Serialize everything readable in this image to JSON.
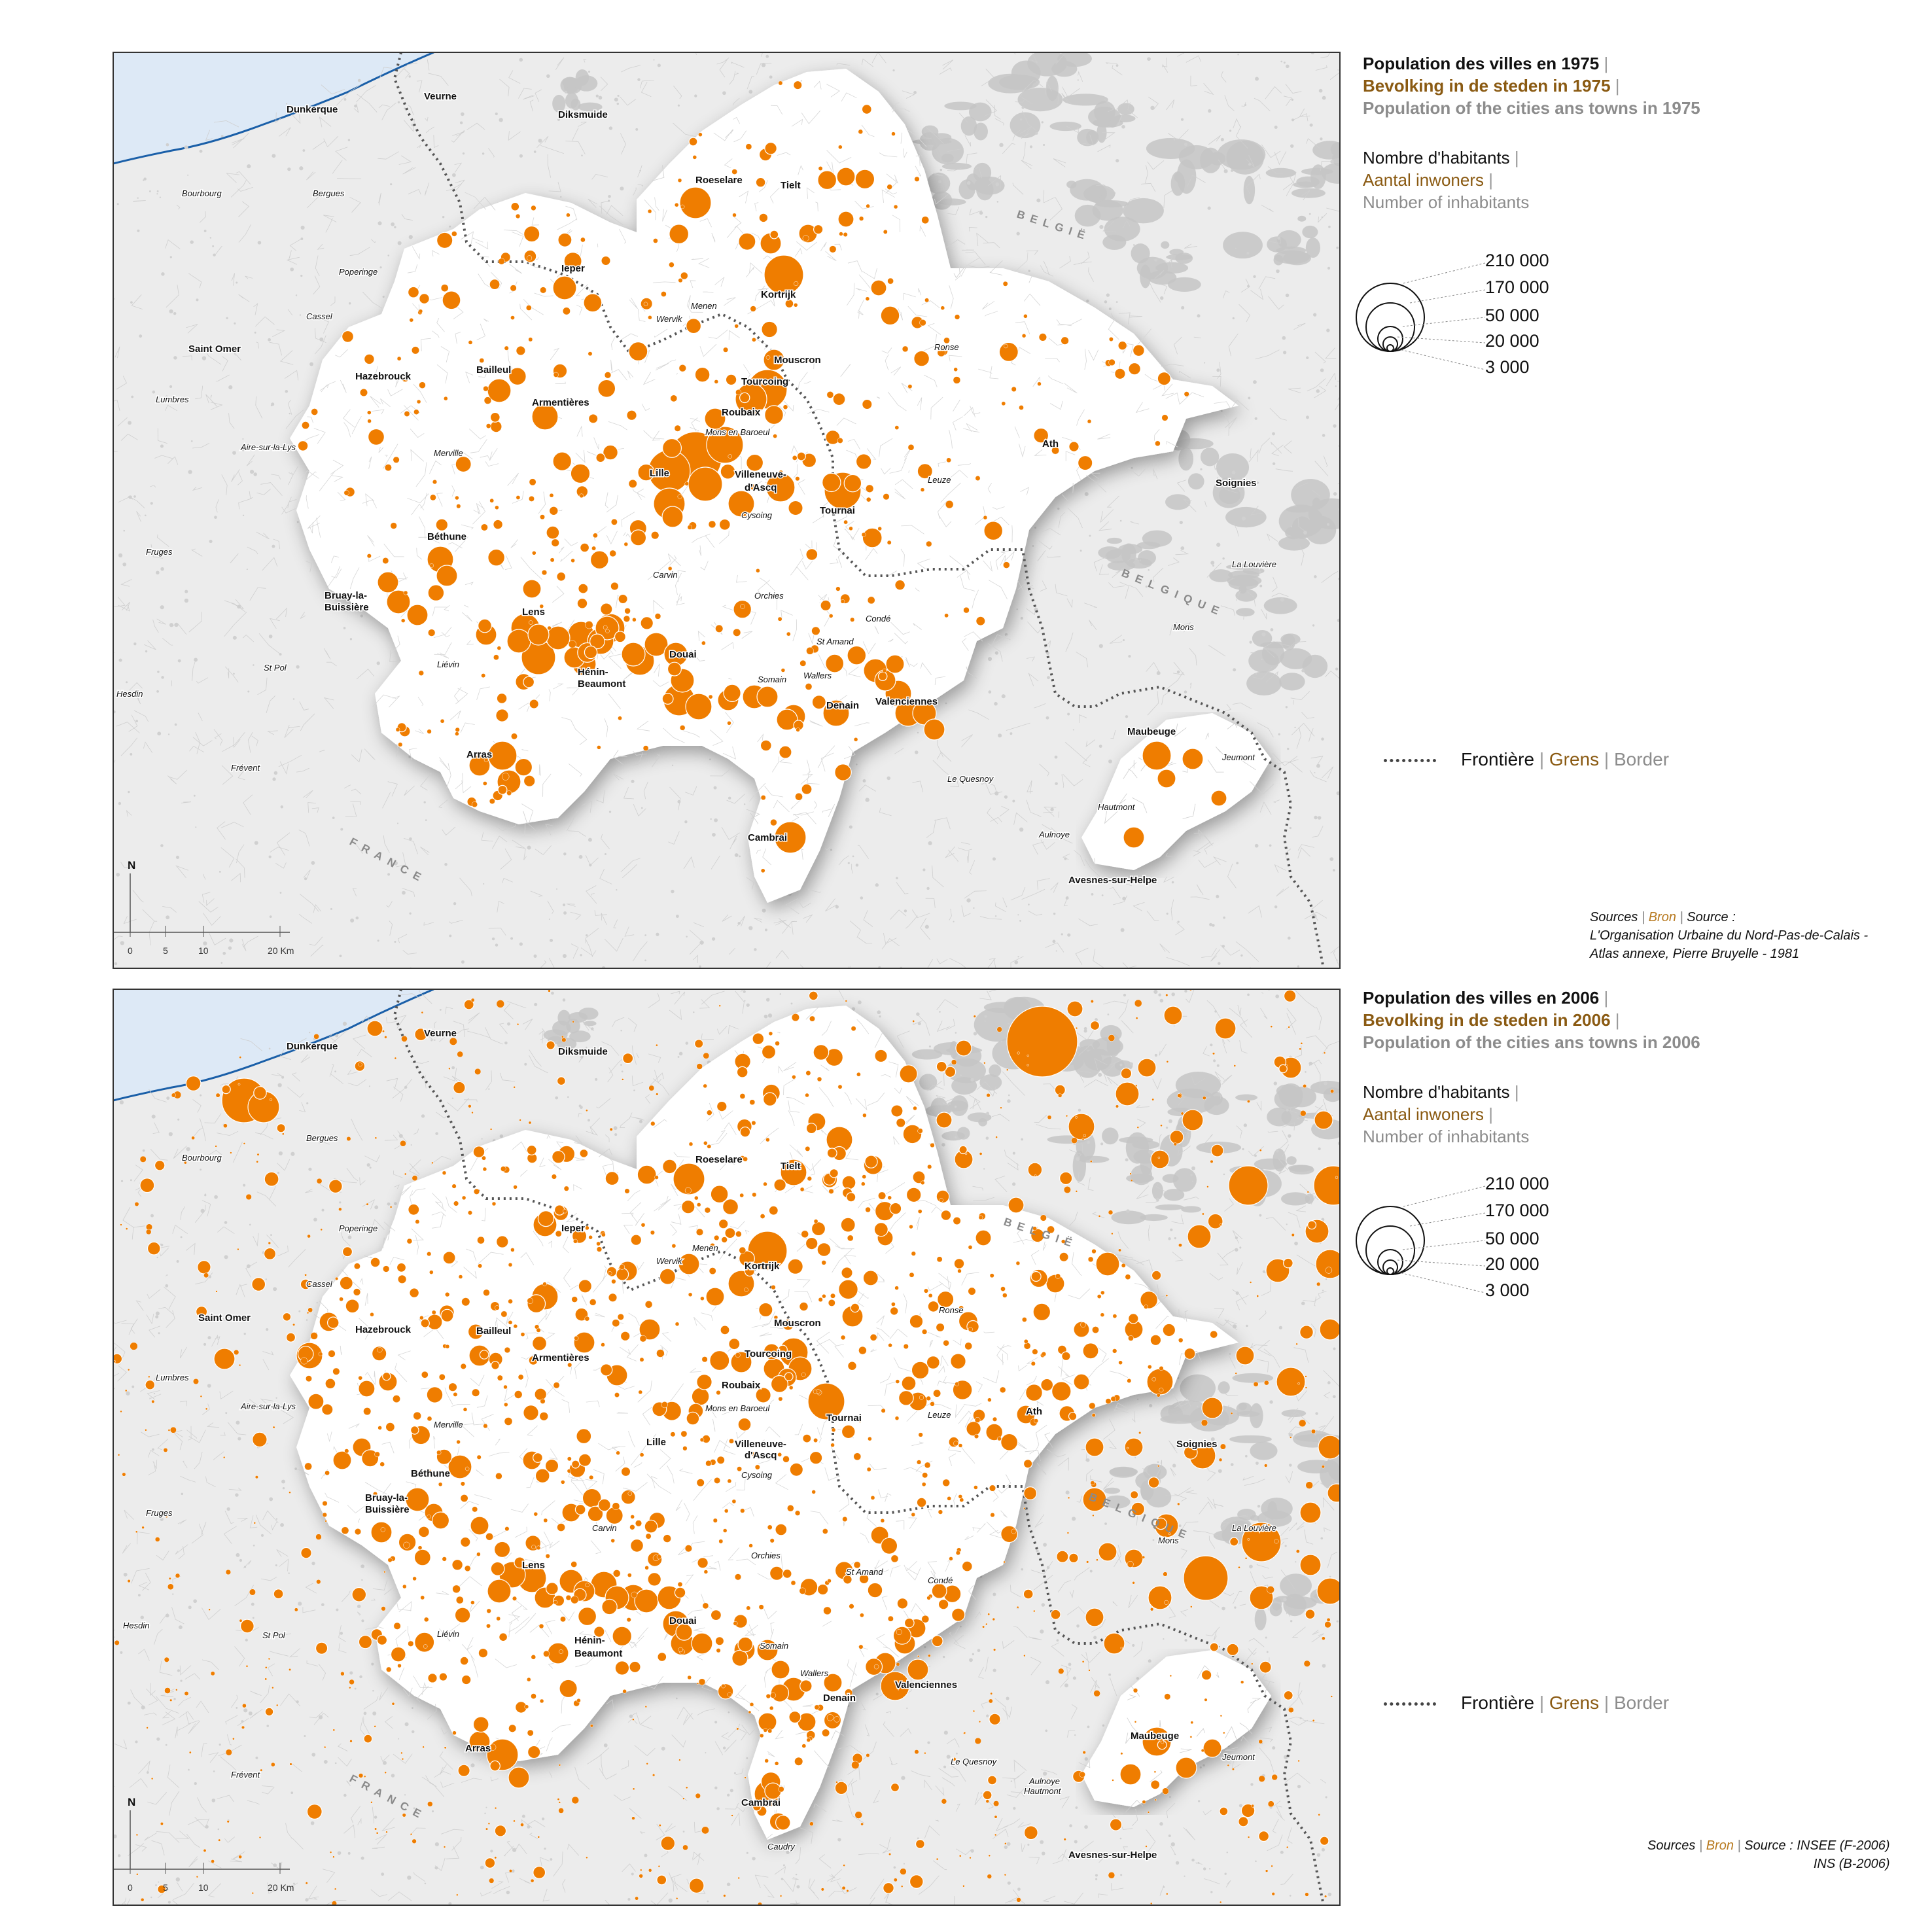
{
  "colors": {
    "circle": "#ef7d00",
    "circle_stroke": "#ffffff",
    "region": "#ffffff",
    "outside": "#ececec",
    "urban_grey": "#c6c6c6",
    "sea": "#dde9f6",
    "coast": "#1a5fa8",
    "border": "#555555",
    "legend_nl": "#8a5a12",
    "legend_en": "#8c8c8c"
  },
  "maps": [
    {
      "title_fr": "Population des villes en 1975",
      "title_nl": "Bevolking in de steden in 1975",
      "title_en": "Population of the cities ans towns in 1975",
      "legend_fr": "Nombre d'habitants",
      "legend_nl": "Aantal inwoners",
      "legend_en": "Number of inhabitants",
      "sizes": [
        "210 000",
        "170 000",
        "50 000",
        "20 000",
        "3 000"
      ],
      "border_fr": "Frontière",
      "border_nl": "Grens",
      "border_en": "Border",
      "sources_line1_a": "Sources",
      "sources_line1_b": "Bron",
      "sources_line1_c": "Source :",
      "sources_line2": "L'Organisation Urbaine du Nord-Pas-de-Calais -",
      "sources_line3": "Atlas annexe, Pierre  Bruyelle - 1981",
      "north": "N",
      "scale": [
        "0",
        "5",
        "10",
        "20 Km"
      ],
      "country_fr_region": "BELGIË",
      "country_be_1": "BELGIË",
      "country_be_2": "BELGIQUE",
      "country_france": "FRANCE"
    },
    {
      "title_fr": "Population des villes en 2006",
      "title_nl": "Bevolking in de steden in 2006",
      "title_en": "Population of the cities ans towns in 2006",
      "legend_fr": "Nombre d'habitants",
      "legend_nl": "Aantal inwoners",
      "legend_en": "Number of inhabitants",
      "sizes": [
        "210 000",
        "170 000",
        "50 000",
        "20 000",
        "3 000"
      ],
      "border_fr": "Frontière",
      "border_nl": "Grens",
      "border_en": "Border",
      "sources_line1_a": "Sources",
      "sources_line1_b": "Bron",
      "sources_line1_c": "Source : INSEE (F-2006)",
      "sources_line2": "INS (B-2006)",
      "north": "N",
      "scale": [
        "0",
        "5",
        "10",
        "20 Km"
      ],
      "country_be_1": "BELGIË",
      "country_be_2": "BELGIQUE",
      "country_france": "FRANCE"
    }
  ],
  "cities_1975": [
    {
      "name": "Dunkerque",
      "bold": true
    },
    {
      "name": "Veurne",
      "bold": true
    },
    {
      "name": "Diksmuide",
      "bold": true
    },
    {
      "name": "Bourbourg",
      "bold": false
    },
    {
      "name": "Bergues",
      "bold": false
    },
    {
      "name": "Roeselare",
      "bold": true
    },
    {
      "name": "Tielt",
      "bold": true
    },
    {
      "name": "Poperinge",
      "bold": false
    },
    {
      "name": "Ieper",
      "bold": true
    },
    {
      "name": "Kortrijk",
      "bold": true
    },
    {
      "name": "Menen",
      "bold": false
    },
    {
      "name": "Wervik",
      "bold": false
    },
    {
      "name": "Cassel",
      "bold": false
    },
    {
      "name": "Saint Omer",
      "bold": true
    },
    {
      "name": "Ronse",
      "bold": false
    },
    {
      "name": "Mouscron",
      "bold": true
    },
    {
      "name": "Hazebrouck",
      "bold": true
    },
    {
      "name": "Bailleul",
      "bold": true
    },
    {
      "name": "Tourcoing",
      "bold": true
    },
    {
      "name": "Lumbres",
      "bold": false
    },
    {
      "name": "Armentières",
      "bold": true
    },
    {
      "name": "Roubaix",
      "bold": true
    },
    {
      "name": "Mons en Baroeul",
      "bold": false
    },
    {
      "name": "Ath",
      "bold": true
    },
    {
      "name": "Aire-sur-la-Lys",
      "bold": false
    },
    {
      "name": "Merville",
      "bold": false
    },
    {
      "name": "Lille",
      "bold": true
    },
    {
      "name": "Villeneuve-",
      "bold": true
    },
    {
      "name": "d'Ascq",
      "bold": true
    },
    {
      "name": "Leuze",
      "bold": false
    },
    {
      "name": "Soignies",
      "bold": true
    },
    {
      "name": "Tournai",
      "bold": true
    },
    {
      "name": "Cysoing",
      "bold": false
    },
    {
      "name": "Fruges",
      "bold": false
    },
    {
      "name": "Béthune",
      "bold": true
    },
    {
      "name": "Carvin",
      "bold": false
    },
    {
      "name": "La Louvière",
      "bold": false
    },
    {
      "name": "Orchies",
      "bold": false
    },
    {
      "name": "Bruay-la-",
      "bold": true
    },
    {
      "name": "Buissière",
      "bold": true
    },
    {
      "name": "Lens",
      "bold": true
    },
    {
      "name": "Condé",
      "bold": false
    },
    {
      "name": "Mons",
      "bold": false
    },
    {
      "name": "St Amand",
      "bold": false
    },
    {
      "name": "Douai",
      "bold": true
    },
    {
      "name": "Liévin",
      "bold": false
    },
    {
      "name": "St Pol",
      "bold": false
    },
    {
      "name": "Hénin-",
      "bold": true
    },
    {
      "name": "Beaumont",
      "bold": true
    },
    {
      "name": "Somain",
      "bold": false
    },
    {
      "name": "Wallers",
      "bold": false
    },
    {
      "name": "Hesdin",
      "bold": false
    },
    {
      "name": "Denain",
      "bold": true
    },
    {
      "name": "Valenciennes",
      "bold": true
    },
    {
      "name": "Maubeuge",
      "bold": true
    },
    {
      "name": "Jeumont",
      "bold": false
    },
    {
      "name": "Arras",
      "bold": true
    },
    {
      "name": "Frévent",
      "bold": false
    },
    {
      "name": "Le Quesnoy",
      "bold": false
    },
    {
      "name": "Hautmont",
      "bold": false
    },
    {
      "name": "Cambrai",
      "bold": true
    },
    {
      "name": "Aulnoye",
      "bold": false
    },
    {
      "name": "Avesnes-sur-Helpe",
      "bold": true
    }
  ],
  "cities_2006": [
    {
      "name": "Dunkerque",
      "bold": true
    },
    {
      "name": "Veurne",
      "bold": true
    },
    {
      "name": "Diksmuide",
      "bold": true
    },
    {
      "name": "Bergues",
      "bold": false
    },
    {
      "name": "Bourbourg",
      "bold": false
    },
    {
      "name": "Roeselare",
      "bold": true
    },
    {
      "name": "Tielt",
      "bold": true
    },
    {
      "name": "Poperinge",
      "bold": false
    },
    {
      "name": "Ieper",
      "bold": true
    },
    {
      "name": "Menen",
      "bold": false
    },
    {
      "name": "Wervik",
      "bold": false
    },
    {
      "name": "Kortrijk",
      "bold": true
    },
    {
      "name": "Cassel",
      "bold": false
    },
    {
      "name": "Ronse",
      "bold": false
    },
    {
      "name": "Saint Omer",
      "bold": true
    },
    {
      "name": "Mouscron",
      "bold": true
    },
    {
      "name": "Hazebrouck",
      "bold": true
    },
    {
      "name": "Bailleul",
      "bold": true
    },
    {
      "name": "Tourcoing",
      "bold": true
    },
    {
      "name": "Lumbres",
      "bold": false
    },
    {
      "name": "Armentières",
      "bold": true
    },
    {
      "name": "Roubaix",
      "bold": true
    },
    {
      "name": "Aire-sur-la-Lys",
      "bold": false
    },
    {
      "name": "Mons en Baroeul",
      "bold": false
    },
    {
      "name": "Tournai",
      "bold": true
    },
    {
      "name": "Ath",
      "bold": true
    },
    {
      "name": "Leuze",
      "bold": false
    },
    {
      "name": "Merville",
      "bold": false
    },
    {
      "name": "Lille",
      "bold": true
    },
    {
      "name": "Villeneuve-",
      "bold": true
    },
    {
      "name": "d'Ascq",
      "bold": true
    },
    {
      "name": "Soignies",
      "bold": true
    },
    {
      "name": "Béthune",
      "bold": true
    },
    {
      "name": "Cysoing",
      "bold": false
    },
    {
      "name": "Fruges",
      "bold": false
    },
    {
      "name": "Bruay-la-",
      "bold": true
    },
    {
      "name": "Buissière",
      "bold": true
    },
    {
      "name": "Carvin",
      "bold": false
    },
    {
      "name": "La Louvière",
      "bold": false
    },
    {
      "name": "Mons",
      "bold": false
    },
    {
      "name": "Orchies",
      "bold": false
    },
    {
      "name": "Lens",
      "bold": true
    },
    {
      "name": "St Amand",
      "bold": false
    },
    {
      "name": "Condé",
      "bold": false
    },
    {
      "name": "Hesdin",
      "bold": false
    },
    {
      "name": "Douai",
      "bold": true
    },
    {
      "name": "Liévin",
      "bold": false
    },
    {
      "name": "St Pol",
      "bold": false
    },
    {
      "name": "Hénin-",
      "bold": true
    },
    {
      "name": "Beaumont",
      "bold": true
    },
    {
      "name": "Somain",
      "bold": false
    },
    {
      "name": "Wallers",
      "bold": false
    },
    {
      "name": "Valenciennes",
      "bold": true
    },
    {
      "name": "Denain",
      "bold": true
    },
    {
      "name": "Maubeuge",
      "bold": true
    },
    {
      "name": "Jeumont",
      "bold": false
    },
    {
      "name": "Arras",
      "bold": true
    },
    {
      "name": "Le Quesnoy",
      "bold": false
    },
    {
      "name": "Frévent",
      "bold": false
    },
    {
      "name": "Aulnoye",
      "bold": false
    },
    {
      "name": "Hautmont",
      "bold": false
    },
    {
      "name": "Cambrai",
      "bold": true
    },
    {
      "name": "Avesnes-sur-Helpe",
      "bold": true
    },
    {
      "name": "Caudry",
      "bold": false
    }
  ]
}
